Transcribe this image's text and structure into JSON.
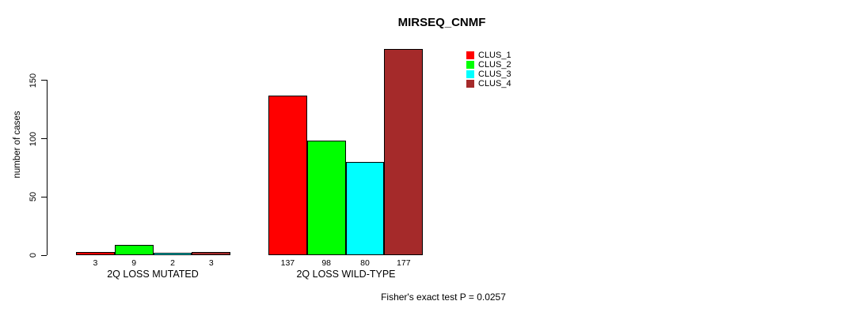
{
  "chart_data": {
    "type": "bar",
    "title": "MIRSEQ_CNMF",
    "ylabel": "number of cases",
    "yticks": [
      0,
      50,
      100,
      150
    ],
    "ylim": [
      0,
      177
    ],
    "grid": false,
    "legend_position": "top-right",
    "bar_border_color": "#000000",
    "categories": [
      "2Q LOSS MUTATED",
      "2Q LOSS WILD-TYPE"
    ],
    "series": [
      {
        "name": "CLUS_1",
        "color": "#FF0000",
        "values": [
          3,
          137
        ]
      },
      {
        "name": "CLUS_2",
        "color": "#00FF00",
        "values": [
          9,
          98
        ]
      },
      {
        "name": "CLUS_3",
        "color": "#00FFFF",
        "values": [
          2,
          80
        ]
      },
      {
        "name": "CLUS_4",
        "color": "#A52A2A",
        "values": [
          3,
          177
        ]
      }
    ],
    "annotation": "Fisher's exact test P = 0.0257"
  }
}
